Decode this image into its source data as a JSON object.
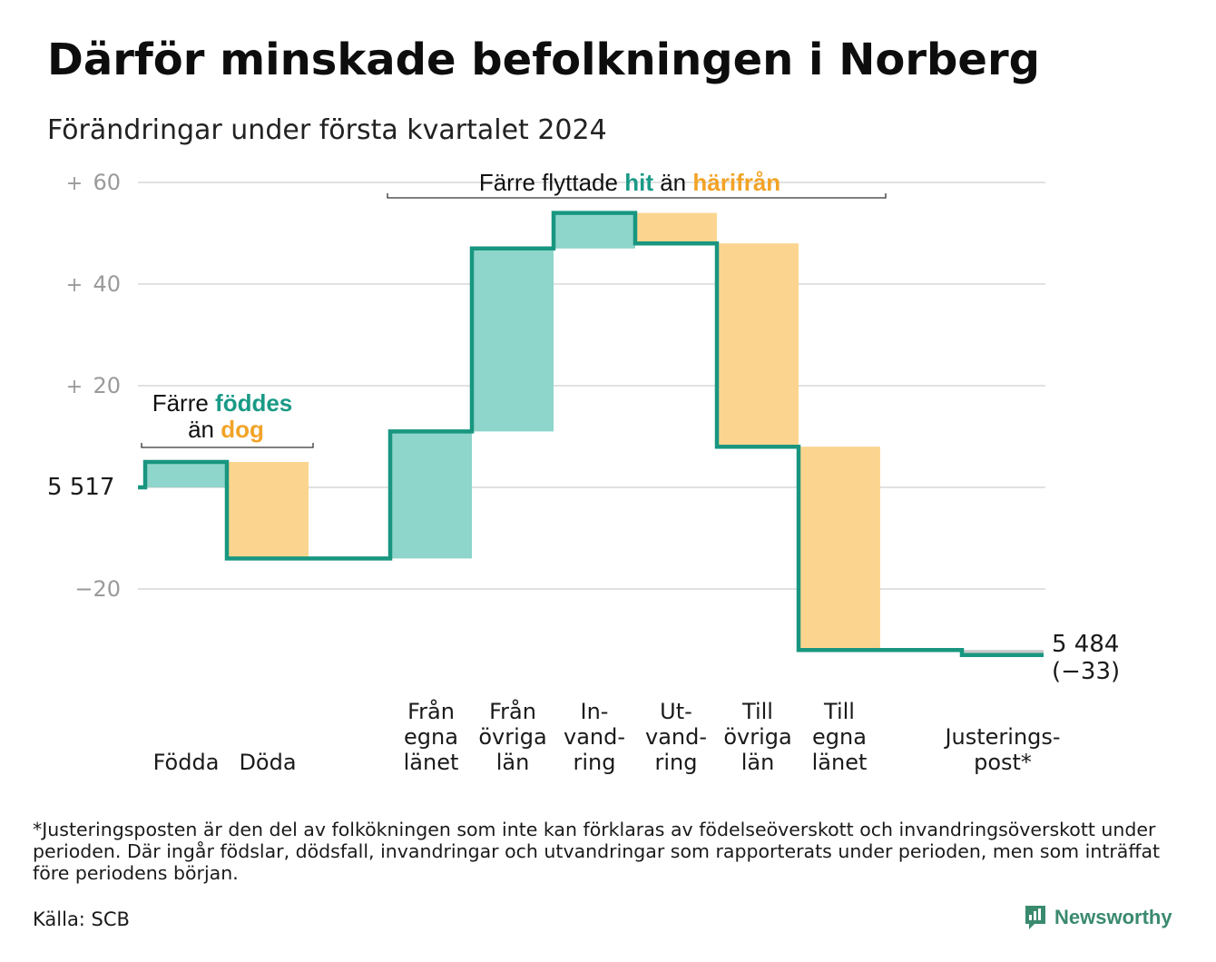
{
  "title": "Därför minskade befolkningen i Norberg",
  "subtitle": "Förändringar under första kvartalet 2024",
  "colors": {
    "inflow": "#8ed5cb",
    "outflow": "#fbd58f",
    "line": "#189680",
    "teal_text": "#1a9a86",
    "orange_text": "#f2a327",
    "grid": "#e1e1e1",
    "tick": "#9a9a9a",
    "adjustment": "#c8c8c8"
  },
  "chart_data": {
    "type": "waterfall",
    "start_value": 5517,
    "end_value": 5484,
    "end_change": -33,
    "start_label": "5 517",
    "end_label_line1": "5 484",
    "end_label_line2": "(−33)",
    "y_ticks": [
      {
        "value": 60,
        "sign": "+",
        "num": "60"
      },
      {
        "value": 40,
        "sign": "+",
        "num": "40"
      },
      {
        "value": 20,
        "sign": "+",
        "num": "20"
      },
      {
        "value": -20,
        "sign": "",
        "num": "−20"
      }
    ],
    "ylim": [
      -35,
      62
    ],
    "steps": [
      {
        "label": [
          "Födda"
        ],
        "value": 5,
        "kind": "inflow"
      },
      {
        "label": [
          "Döda"
        ],
        "value": -19,
        "kind": "outflow"
      },
      {
        "label": [],
        "value": 0,
        "kind": "none"
      },
      {
        "label": [
          "Från",
          "egna",
          "länet"
        ],
        "value": 25,
        "kind": "inflow"
      },
      {
        "label": [
          "Från",
          "övriga",
          "län"
        ],
        "value": 36,
        "kind": "inflow"
      },
      {
        "label": [
          "In-",
          "vand-",
          "ring"
        ],
        "value": 7,
        "kind": "inflow"
      },
      {
        "label": [
          "Ut-",
          "vand-",
          "ring"
        ],
        "value": -6,
        "kind": "outflow"
      },
      {
        "label": [
          "Till",
          "övriga",
          "län"
        ],
        "value": -40,
        "kind": "outflow"
      },
      {
        "label": [
          "Till",
          "egna",
          "länet"
        ],
        "value": -40,
        "kind": "outflow"
      },
      {
        "label": [],
        "value": 0,
        "kind": "none"
      },
      {
        "label": [
          "Justerings-",
          "post*"
        ],
        "value": -1,
        "kind": "adjustment"
      }
    ],
    "annotations": [
      {
        "id": "births",
        "parts": [
          {
            "text": "Färre ",
            "style": "plain"
          },
          {
            "text": "föddes",
            "style": "teal"
          },
          {
            "text": "än ",
            "style": "plain",
            "newline": true
          },
          {
            "text": "dog",
            "style": "orange"
          }
        ]
      },
      {
        "id": "migration",
        "parts": [
          {
            "text": "Färre flyttade ",
            "style": "plain"
          },
          {
            "text": "hit",
            "style": "teal"
          },
          {
            "text": " än ",
            "style": "plain"
          },
          {
            "text": "härifrån",
            "style": "orange"
          }
        ]
      }
    ]
  },
  "footnote": "*Justeringsposten är den del av folkökningen som inte kan förklaras av födelseöverskott och invandringsöverskott under perioden. Där ingår födslar, dödsfall, invandringar och utvandringar som rapporterats under perioden, men som inträffat före periodens början.",
  "source": "Källa: SCB",
  "brand": "Newsworthy",
  "brand_icon": "newsworthy-logo-icon"
}
